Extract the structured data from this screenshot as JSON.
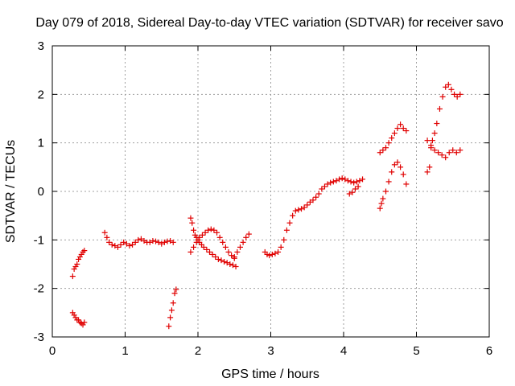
{
  "chart_data": {
    "type": "scatter",
    "title": "Day 079 of 2018, Sidereal Day-to-day VTEC variation (SDTVAR) for receiver savo",
    "xlabel": "GPS time / hours",
    "ylabel": "SDTVAR / TECUs",
    "xlim": [
      0,
      6
    ],
    "ylim": [
      -3,
      3
    ],
    "xticks": [
      0,
      1,
      2,
      3,
      4,
      5,
      6
    ],
    "yticks": [
      -3,
      -2,
      -1,
      0,
      1,
      2,
      3
    ],
    "grid": true,
    "marker": "+",
    "color": "#e00000",
    "series": [
      {
        "name": "SDTVAR",
        "points": [
          [
            0.28,
            -1.75
          ],
          [
            0.3,
            -1.6
          ],
          [
            0.32,
            -1.55
          ],
          [
            0.34,
            -1.5
          ],
          [
            0.36,
            -1.4
          ],
          [
            0.38,
            -1.35
          ],
          [
            0.4,
            -1.3
          ],
          [
            0.42,
            -1.25
          ],
          [
            0.44,
            -1.22
          ],
          [
            0.28,
            -2.5
          ],
          [
            0.3,
            -2.55
          ],
          [
            0.32,
            -2.6
          ],
          [
            0.34,
            -2.65
          ],
          [
            0.36,
            -2.65
          ],
          [
            0.38,
            -2.7
          ],
          [
            0.4,
            -2.72
          ],
          [
            0.42,
            -2.75
          ],
          [
            0.44,
            -2.7
          ],
          [
            0.72,
            -0.85
          ],
          [
            0.75,
            -0.95
          ],
          [
            0.78,
            -1.05
          ],
          [
            0.82,
            -1.1
          ],
          [
            0.86,
            -1.12
          ],
          [
            0.9,
            -1.15
          ],
          [
            0.94,
            -1.1
          ],
          [
            0.98,
            -1.05
          ],
          [
            1.02,
            -1.08
          ],
          [
            1.06,
            -1.12
          ],
          [
            1.1,
            -1.1
          ],
          [
            1.14,
            -1.05
          ],
          [
            1.18,
            -1.0
          ],
          [
            1.22,
            -0.98
          ],
          [
            1.26,
            -1.02
          ],
          [
            1.3,
            -1.05
          ],
          [
            1.34,
            -1.05
          ],
          [
            1.38,
            -1.02
          ],
          [
            1.42,
            -1.03
          ],
          [
            1.46,
            -1.05
          ],
          [
            1.5,
            -1.08
          ],
          [
            1.54,
            -1.05
          ],
          [
            1.58,
            -1.03
          ],
          [
            1.62,
            -1.02
          ],
          [
            1.66,
            -1.05
          ],
          [
            1.6,
            -2.78
          ],
          [
            1.62,
            -2.6
          ],
          [
            1.64,
            -2.45
          ],
          [
            1.66,
            -2.3
          ],
          [
            1.68,
            -2.1
          ],
          [
            1.7,
            -2.02
          ],
          [
            1.9,
            -0.55
          ],
          [
            1.92,
            -0.65
          ],
          [
            1.94,
            -0.8
          ],
          [
            1.96,
            -0.9
          ],
          [
            1.98,
            -0.95
          ],
          [
            2.0,
            -1.0
          ],
          [
            2.02,
            -1.05
          ],
          [
            2.05,
            -1.1
          ],
          [
            2.08,
            -1.15
          ],
          [
            2.12,
            -1.2
          ],
          [
            2.16,
            -1.25
          ],
          [
            2.2,
            -1.3
          ],
          [
            2.24,
            -1.35
          ],
          [
            2.28,
            -1.4
          ],
          [
            2.32,
            -1.42
          ],
          [
            2.36,
            -1.45
          ],
          [
            2.4,
            -1.47
          ],
          [
            2.44,
            -1.5
          ],
          [
            2.48,
            -1.52
          ],
          [
            2.52,
            -1.55
          ],
          [
            1.9,
            -1.25
          ],
          [
            1.94,
            -1.15
          ],
          [
            1.98,
            -1.05
          ],
          [
            2.02,
            -0.95
          ],
          [
            2.06,
            -0.9
          ],
          [
            2.1,
            -0.85
          ],
          [
            2.14,
            -0.8
          ],
          [
            2.18,
            -0.78
          ],
          [
            2.22,
            -0.8
          ],
          [
            2.26,
            -0.85
          ],
          [
            2.3,
            -0.95
          ],
          [
            2.34,
            -1.05
          ],
          [
            2.38,
            -1.15
          ],
          [
            2.42,
            -1.25
          ],
          [
            2.46,
            -1.32
          ],
          [
            2.5,
            -1.38
          ],
          [
            2.5,
            -1.35
          ],
          [
            2.54,
            -1.25
          ],
          [
            2.58,
            -1.15
          ],
          [
            2.62,
            -1.05
          ],
          [
            2.66,
            -0.95
          ],
          [
            2.7,
            -0.88
          ],
          [
            2.92,
            -1.25
          ],
          [
            2.95,
            -1.3
          ],
          [
            2.98,
            -1.32
          ],
          [
            3.02,
            -1.3
          ],
          [
            3.06,
            -1.28
          ],
          [
            3.1,
            -1.25
          ],
          [
            3.14,
            -1.15
          ],
          [
            3.18,
            -1.0
          ],
          [
            3.22,
            -0.8
          ],
          [
            3.26,
            -0.65
          ],
          [
            3.3,
            -0.5
          ],
          [
            3.34,
            -0.4
          ],
          [
            3.38,
            -0.38
          ],
          [
            3.42,
            -0.36
          ],
          [
            3.46,
            -0.33
          ],
          [
            3.5,
            -0.28
          ],
          [
            3.54,
            -0.22
          ],
          [
            3.58,
            -0.18
          ],
          [
            3.62,
            -0.12
          ],
          [
            3.66,
            -0.05
          ],
          [
            3.7,
            0.05
          ],
          [
            3.74,
            0.1
          ],
          [
            3.78,
            0.15
          ],
          [
            3.82,
            0.18
          ],
          [
            3.86,
            0.2
          ],
          [
            3.9,
            0.22
          ],
          [
            3.94,
            0.25
          ],
          [
            3.98,
            0.27
          ],
          [
            4.02,
            0.25
          ],
          [
            4.06,
            0.22
          ],
          [
            4.1,
            0.2
          ],
          [
            4.14,
            0.18
          ],
          [
            4.18,
            0.2
          ],
          [
            4.22,
            0.22
          ],
          [
            4.26,
            0.25
          ],
          [
            4.08,
            -0.05
          ],
          [
            4.12,
            -0.02
          ],
          [
            4.16,
            0.05
          ],
          [
            4.2,
            0.1
          ],
          [
            4.5,
            -0.35
          ],
          [
            4.52,
            -0.25
          ],
          [
            4.54,
            -0.15
          ],
          [
            4.58,
            0.0
          ],
          [
            4.62,
            0.2
          ],
          [
            4.66,
            0.4
          ],
          [
            4.7,
            0.55
          ],
          [
            4.74,
            0.6
          ],
          [
            4.78,
            0.5
          ],
          [
            4.82,
            0.35
          ],
          [
            4.86,
            0.15
          ],
          [
            4.5,
            0.8
          ],
          [
            4.54,
            0.85
          ],
          [
            4.58,
            0.9
          ],
          [
            4.62,
            1.0
          ],
          [
            4.66,
            1.1
          ],
          [
            4.7,
            1.2
          ],
          [
            4.74,
            1.3
          ],
          [
            4.78,
            1.38
          ],
          [
            4.82,
            1.3
          ],
          [
            4.86,
            1.25
          ],
          [
            5.15,
            0.4
          ],
          [
            5.18,
            0.5
          ],
          [
            5.2,
            0.9
          ],
          [
            5.22,
            1.05
          ],
          [
            5.25,
            1.2
          ],
          [
            5.28,
            1.4
          ],
          [
            5.32,
            1.7
          ],
          [
            5.36,
            1.95
          ],
          [
            5.4,
            2.15
          ],
          [
            5.44,
            2.2
          ],
          [
            5.48,
            2.1
          ],
          [
            5.52,
            2.0
          ],
          [
            5.56,
            1.95
          ],
          [
            5.6,
            2.0
          ],
          [
            5.15,
            1.05
          ],
          [
            5.2,
            0.95
          ],
          [
            5.25,
            0.85
          ],
          [
            5.3,
            0.8
          ],
          [
            5.35,
            0.75
          ],
          [
            5.4,
            0.7
          ],
          [
            5.45,
            0.8
          ],
          [
            5.5,
            0.85
          ],
          [
            5.55,
            0.8
          ],
          [
            5.6,
            0.85
          ]
        ]
      }
    ]
  }
}
